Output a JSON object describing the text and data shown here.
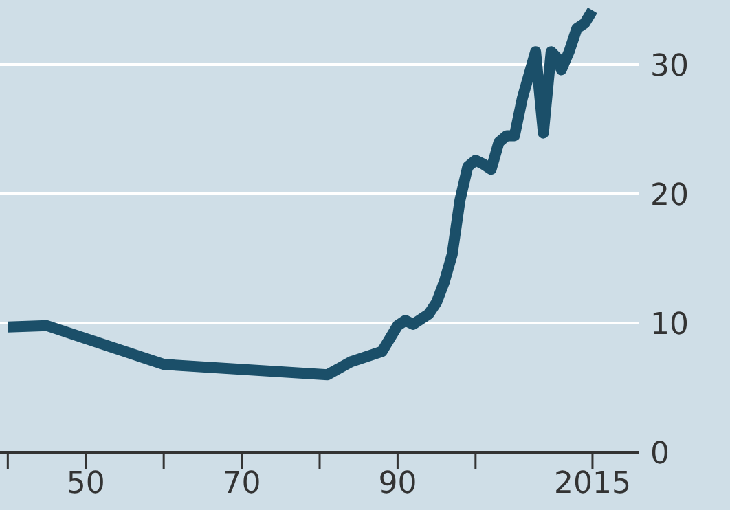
{
  "chart_data": {
    "type": "line",
    "x": [
      1940,
      1945,
      1960,
      1981,
      1984,
      1986,
      1988,
      1989,
      1990,
      1991,
      1992,
      1993,
      1994,
      1995,
      1996,
      1997,
      1998,
      1999,
      2000,
      2001,
      2002,
      2003,
      2004,
      2005,
      2006,
      2007.7,
      2008.7,
      2009.7,
      2010.5,
      2011,
      2012,
      2013,
      2014,
      2015
    ],
    "series": [
      {
        "color": "#1b4f69",
        "values": [
          9.7,
          9.8,
          6.8,
          6.0,
          7.0,
          7.4,
          7.8,
          8.8,
          9.8,
          10.2,
          9.9,
          10.3,
          10.7,
          11.6,
          13.2,
          15.3,
          19.5,
          22.1,
          22.6,
          22.3,
          21.9,
          24.0,
          24.5,
          24.5,
          27.4,
          31.0,
          24.7,
          31.0,
          30.5,
          29.6,
          31.0,
          32.8,
          33.2,
          34.2
        ]
      }
    ],
    "xlim": [
      1939,
      2021
    ],
    "xticks": [
      {
        "value": 1940,
        "label": null
      },
      {
        "value": 1950,
        "label": "50"
      },
      {
        "value": 1960,
        "label": null
      },
      {
        "value": 1970,
        "label": "70"
      },
      {
        "value": 1980,
        "label": null
      },
      {
        "value": 1990,
        "label": "90"
      },
      {
        "value": 2000,
        "label": null
      },
      {
        "value": 2015,
        "label": "2015"
      }
    ],
    "ylim": [
      0,
      35
    ],
    "yticks": [
      0,
      10,
      20,
      30
    ],
    "grid": "y",
    "marker": "none",
    "line_style": "solid",
    "legend": false
  }
}
